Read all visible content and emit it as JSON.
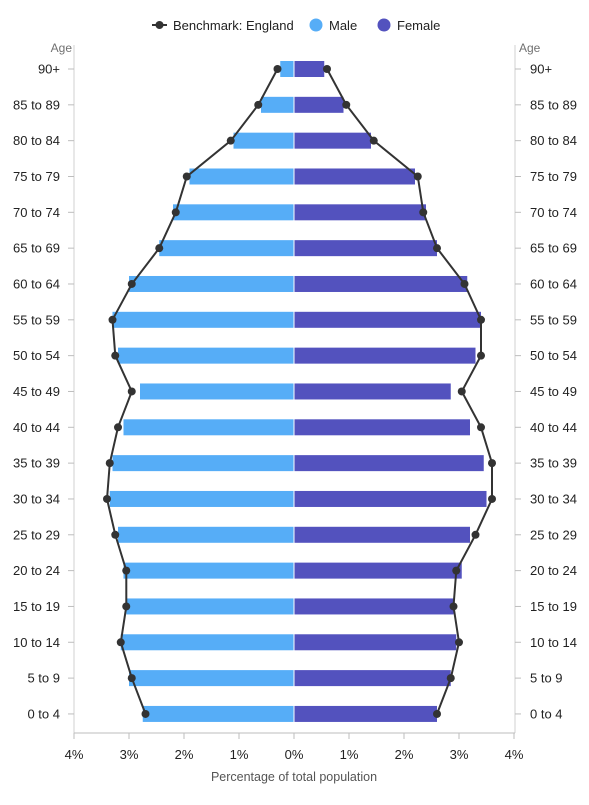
{
  "chart_data": {
    "type": "bar",
    "subtype": "population-pyramid",
    "categories": [
      "90+",
      "85 to 89",
      "80 to 84",
      "75 to 79",
      "70 to 74",
      "65 to 69",
      "60 to 64",
      "55 to 59",
      "50 to 54",
      "45 to 49",
      "40 to 44",
      "35 to 39",
      "30 to 34",
      "25 to 29",
      "20 to 24",
      "15 to 19",
      "10 to 14",
      "5 to 9",
      "0 to 4"
    ],
    "series": [
      {
        "name": "Male",
        "color": "#56ADF7",
        "values": [
          0.25,
          0.6,
          1.1,
          1.9,
          2.2,
          2.45,
          3.0,
          3.3,
          3.2,
          2.8,
          3.1,
          3.3,
          3.35,
          3.2,
          3.1,
          3.05,
          3.15,
          3.0,
          2.75
        ]
      },
      {
        "name": "Female",
        "color": "#5352BE",
        "values": [
          0.55,
          0.9,
          1.4,
          2.2,
          2.4,
          2.6,
          3.15,
          3.4,
          3.3,
          2.85,
          3.2,
          3.45,
          3.5,
          3.2,
          3.05,
          2.9,
          2.95,
          2.85,
          2.6
        ]
      },
      {
        "name": "Benchmark: England",
        "color": "#333333",
        "male": [
          0.3,
          0.65,
          1.15,
          1.95,
          2.15,
          2.45,
          2.95,
          3.3,
          3.25,
          2.95,
          3.2,
          3.35,
          3.4,
          3.25,
          3.05,
          3.05,
          3.15,
          2.95,
          2.7
        ],
        "female": [
          0.6,
          0.95,
          1.45,
          2.25,
          2.35,
          2.6,
          3.1,
          3.4,
          3.4,
          3.05,
          3.4,
          3.6,
          3.6,
          3.3,
          2.95,
          2.9,
          3.0,
          2.85,
          2.6
        ]
      }
    ],
    "xlabel": "Percentage of total population",
    "ylabel": "Age",
    "xlim": [
      -4,
      4
    ],
    "xticks": [
      "4%",
      "3%",
      "2%",
      "1%",
      "0%",
      "1%",
      "2%",
      "3%",
      "4%"
    ],
    "legend": {
      "position": "top-center",
      "items": [
        {
          "label": "Benchmark: England",
          "marker": "line-dot",
          "color": "#333333"
        },
        {
          "label": "Male",
          "marker": "circle",
          "color": "#56ADF7"
        },
        {
          "label": "Female",
          "marker": "circle",
          "color": "#5352BE"
        }
      ]
    },
    "grid": false
  }
}
